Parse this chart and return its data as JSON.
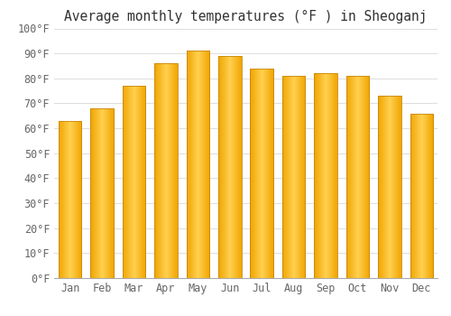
{
  "months": [
    "Jan",
    "Feb",
    "Mar",
    "Apr",
    "May",
    "Jun",
    "Jul",
    "Aug",
    "Sep",
    "Oct",
    "Nov",
    "Dec"
  ],
  "values": [
    63,
    68,
    77,
    86,
    91,
    89,
    84,
    81,
    82,
    81,
    73,
    66
  ],
  "bar_color_light": "#FFD966",
  "bar_color_dark": "#F0A500",
  "bar_edge_color": "#C8880A",
  "title": "Average monthly temperatures (°F ) in Sheoganj",
  "ylim": [
    0,
    100
  ],
  "background_color": "#FFFFFF",
  "grid_color": "#DDDDDD",
  "title_fontsize": 10.5,
  "tick_fontsize": 8.5,
  "font_family": "monospace"
}
